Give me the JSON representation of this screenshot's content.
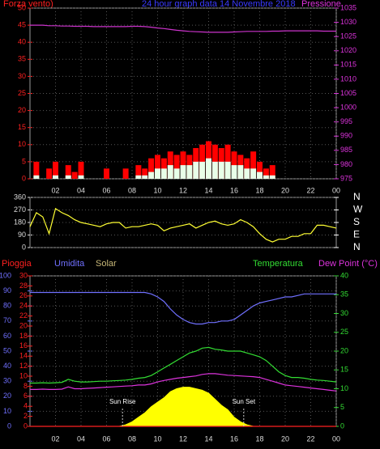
{
  "chart_data": [
    {
      "type": "bar",
      "title": "24 hour graph data  14 Novembre 2018",
      "ylabel": "Forza vento)",
      "y2label": "Pressione",
      "xlim": [
        0,
        24
      ],
      "xticks": [
        {
          "value": 2,
          "label": "02"
        },
        {
          "value": 4,
          "label": "04"
        },
        {
          "value": 6,
          "label": "06"
        },
        {
          "value": 8,
          "label": "08"
        },
        10,
        12,
        14,
        16,
        18,
        20,
        22,
        {
          "value": 24,
          "label": "00"
        }
      ],
      "ylim": [
        0,
        50
      ],
      "yticks": [
        0,
        5,
        10,
        15,
        20,
        25,
        30,
        35,
        40,
        45,
        50
      ],
      "y2lim": [
        975,
        1035
      ],
      "y2ticks": [
        975,
        980,
        985,
        990,
        995,
        1000,
        1005,
        1010,
        1015,
        1020,
        1025,
        1030,
        1035
      ],
      "grid": true,
      "x": [
        0,
        0.5,
        1,
        1.5,
        2,
        2.5,
        3,
        3.5,
        4,
        4.5,
        5,
        5.5,
        6,
        6.5,
        7,
        7.5,
        8,
        8.5,
        9,
        9.5,
        10,
        10.5,
        11,
        11.5,
        12,
        12.5,
        13,
        13.5,
        14,
        14.5,
        15,
        15.5,
        16,
        16.5,
        17,
        17.5,
        18,
        18.5,
        19,
        19.5,
        20,
        20.5,
        21,
        21.5,
        22,
        22.5,
        23,
        23.5,
        24
      ],
      "series": [
        {
          "kind": "bar",
          "color": "#ff0000",
          "axis": "y",
          "values": [
            0,
            5,
            0,
            3,
            5,
            0,
            4,
            2,
            5,
            0,
            0,
            0,
            3,
            0,
            0,
            3,
            0,
            4,
            3,
            6,
            7,
            6,
            8,
            7,
            8,
            7,
            9,
            10,
            11,
            10,
            9,
            10,
            8,
            7,
            6,
            8,
            5,
            3,
            4,
            0,
            0,
            0,
            0,
            0,
            0,
            0,
            0,
            0,
            0
          ]
        },
        {
          "kind": "bar",
          "color": "#e8ffe8",
          "axis": "y",
          "values": [
            0,
            1,
            0,
            0,
            1,
            0,
            1,
            0,
            1,
            0,
            0,
            0,
            0,
            0,
            0,
            0,
            0,
            1,
            1,
            2,
            3,
            3,
            4,
            3,
            4,
            4,
            5,
            5,
            6,
            5,
            5,
            5,
            4,
            4,
            3,
            3,
            2,
            1,
            1,
            0,
            0,
            0,
            0,
            0,
            0,
            0,
            0,
            0,
            0
          ]
        },
        {
          "kind": "line",
          "color": "#cc33cc",
          "axis": "y2",
          "values": [
            1029,
            1029,
            1029,
            1028.8,
            1028.8,
            1028.7,
            1028.7,
            1028.6,
            1028.6,
            1028.6,
            1028.5,
            1028.5,
            1028.5,
            1028.5,
            1028.5,
            1028.5,
            1028.6,
            1028.6,
            1028.5,
            1028.3,
            1028,
            1027.8,
            1027.5,
            1027.2,
            1027,
            1026.8,
            1026.7,
            1026.6,
            1026.5,
            1026.5,
            1026.5,
            1026.5,
            1026.6,
            1026.7,
            1026.8,
            1026.8,
            1026.8,
            1026.8,
            1026.9,
            1026.9,
            1027,
            1027,
            1027,
            1027,
            1027,
            1027,
            1026.9,
            1026.9,
            1026.9
          ]
        }
      ]
    },
    {
      "type": "line",
      "xlim": [
        0,
        24
      ],
      "ylim": [
        0,
        360
      ],
      "yticks": [
        0,
        90,
        180,
        270,
        360
      ],
      "y2lim": [
        0,
        360
      ],
      "y2ticks": [
        {
          "value": 0,
          "label": "N"
        },
        {
          "value": 90,
          "label": "E"
        },
        {
          "value": 180,
          "label": "S"
        },
        {
          "value": 270,
          "label": "W"
        },
        {
          "value": 360,
          "label": "N"
        }
      ],
      "grid": true,
      "x": [
        0,
        0.5,
        1,
        1.5,
        2,
        2.5,
        3,
        3.5,
        4,
        4.5,
        5,
        5.5,
        6,
        6.5,
        7,
        7.5,
        8,
        8.5,
        9,
        9.5,
        10,
        10.5,
        11,
        11.5,
        12,
        12.5,
        13,
        13.5,
        14,
        14.5,
        15,
        15.5,
        16,
        16.5,
        17,
        17.5,
        18,
        18.5,
        19,
        19.5,
        20,
        20.5,
        21,
        21.5,
        22,
        22.5,
        23,
        23.5,
        24
      ],
      "series": [
        {
          "kind": "line",
          "color": "#ffff33",
          "axis": "y",
          "values": [
            150,
            250,
            220,
            100,
            280,
            250,
            230,
            200,
            180,
            170,
            160,
            150,
            170,
            180,
            180,
            140,
            150,
            150,
            160,
            170,
            160,
            120,
            140,
            150,
            160,
            170,
            140,
            160,
            180,
            190,
            170,
            160,
            170,
            200,
            180,
            150,
            100,
            60,
            40,
            60,
            60,
            80,
            80,
            100,
            100,
            160,
            160,
            150,
            140
          ]
        }
      ]
    },
    {
      "type": "line",
      "xlim": [
        0,
        24
      ],
      "xticks": [
        {
          "value": 2,
          "label": "02"
        },
        {
          "value": 4,
          "label": "04"
        },
        {
          "value": 6,
          "label": "06"
        },
        {
          "value": 8,
          "label": "08"
        },
        10,
        12,
        14,
        16,
        18,
        20,
        22,
        {
          "value": 24,
          "label": "00"
        }
      ],
      "ylim": [
        0,
        100
      ],
      "yticks": [
        0,
        10,
        20,
        30,
        40,
        50,
        60,
        70,
        80,
        90,
        100
      ],
      "y2lim": [
        0,
        40
      ],
      "y2ticks": [
        0,
        5,
        10,
        15,
        20,
        25,
        30,
        35,
        40
      ],
      "y3lim": [
        0,
        30
      ],
      "y3ticks": [
        0,
        2,
        4,
        6,
        8,
        10,
        12,
        14,
        16,
        18,
        20,
        22,
        24,
        26,
        28,
        30
      ],
      "grid": true,
      "annotations": [
        {
          "text": "Sun Rise",
          "x": 7.25
        },
        {
          "text": "Sun Set",
          "x": 16.75
        }
      ],
      "x": [
        0,
        0.5,
        1,
        1.5,
        2,
        2.5,
        3,
        3.5,
        4,
        4.5,
        5,
        5.5,
        6,
        6.5,
        7,
        7.5,
        8,
        8.5,
        9,
        9.5,
        10,
        10.5,
        11,
        11.5,
        12,
        12.5,
        13,
        13.5,
        14,
        14.5,
        15,
        15.5,
        16,
        16.5,
        17,
        17.5,
        18,
        18.5,
        19,
        19.5,
        20,
        20.5,
        21,
        21.5,
        22,
        22.5,
        23,
        23.5,
        24
      ],
      "series": [
        {
          "name": "Pioggia",
          "kind": "line",
          "color": "#ff2020",
          "axis": "y3",
          "values": [
            0,
            0,
            0,
            0,
            0,
            0,
            0,
            0,
            0,
            0,
            0,
            0,
            0,
            0,
            0,
            0,
            0,
            0,
            0,
            0,
            0,
            0,
            0,
            0,
            0,
            0,
            0,
            0,
            0,
            0,
            0,
            0,
            0,
            0,
            0,
            0,
            0,
            0,
            0,
            0,
            0,
            0,
            0,
            0,
            0,
            0,
            0,
            0,
            0
          ]
        },
        {
          "name": "Umidita",
          "kind": "line",
          "color": "#7070ff",
          "axis": "y",
          "values": [
            89,
            89,
            89,
            89,
            89,
            89,
            89,
            89,
            89,
            89,
            89,
            89,
            89,
            89,
            89,
            89,
            89,
            89,
            89,
            88,
            86,
            83,
            78,
            74,
            71,
            69,
            68,
            68,
            69,
            69,
            70,
            70,
            71,
            74,
            77,
            80,
            82,
            83,
            84,
            85,
            86,
            86,
            87,
            88,
            88,
            88,
            88,
            88,
            88
          ]
        },
        {
          "name": "Solar",
          "kind": "area",
          "color": "#ffff00",
          "axis": "y",
          "values": [
            0,
            0,
            0,
            0,
            0,
            0,
            0,
            0,
            0,
            0,
            0,
            0,
            0,
            0,
            0,
            1,
            3,
            6,
            9,
            13,
            16,
            19,
            23,
            25,
            26,
            26,
            25,
            24,
            22,
            18,
            14,
            11,
            6,
            3,
            1,
            0,
            0,
            0,
            0,
            0,
            0,
            0,
            0,
            0,
            0,
            0,
            0,
            0,
            0
          ]
        },
        {
          "name": "Temperatura",
          "kind": "line",
          "color": "#33dd33",
          "axis": "y2",
          "values": [
            11.5,
            11.5,
            11.6,
            11.5,
            11.6,
            11.7,
            12.5,
            12,
            11.8,
            11.8,
            11.9,
            12,
            12,
            12.1,
            12.2,
            12.3,
            12.5,
            12.8,
            13,
            13.5,
            14.5,
            15.5,
            16.5,
            17.5,
            18.5,
            19.5,
            20,
            20.8,
            21,
            20.5,
            20.3,
            20,
            20,
            20,
            19.5,
            19,
            18.5,
            17.5,
            16,
            14.5,
            13.5,
            13,
            13,
            12.8,
            12.5,
            12.3,
            12.2,
            12,
            11.8
          ]
        },
        {
          "name": "Dew Point (°C)",
          "kind": "line",
          "color": "#dd33dd",
          "axis": "y2",
          "values": [
            9.8,
            9.8,
            9.9,
            9.8,
            9.8,
            9.9,
            10.5,
            10,
            10,
            10.1,
            10.2,
            10.3,
            10.4,
            10.5,
            10.6,
            10.7,
            10.8,
            11,
            11,
            11.3,
            11.8,
            12.2,
            12.5,
            12.8,
            13,
            13.2,
            13.4,
            13.8,
            14,
            14,
            13.8,
            13.6,
            13.5,
            13.4,
            13.3,
            13.2,
            13,
            12.5,
            12,
            11.5,
            11,
            10.8,
            10.6,
            10.4,
            10.2,
            10,
            9.8,
            9.6,
            9.4
          ]
        }
      ]
    }
  ]
}
